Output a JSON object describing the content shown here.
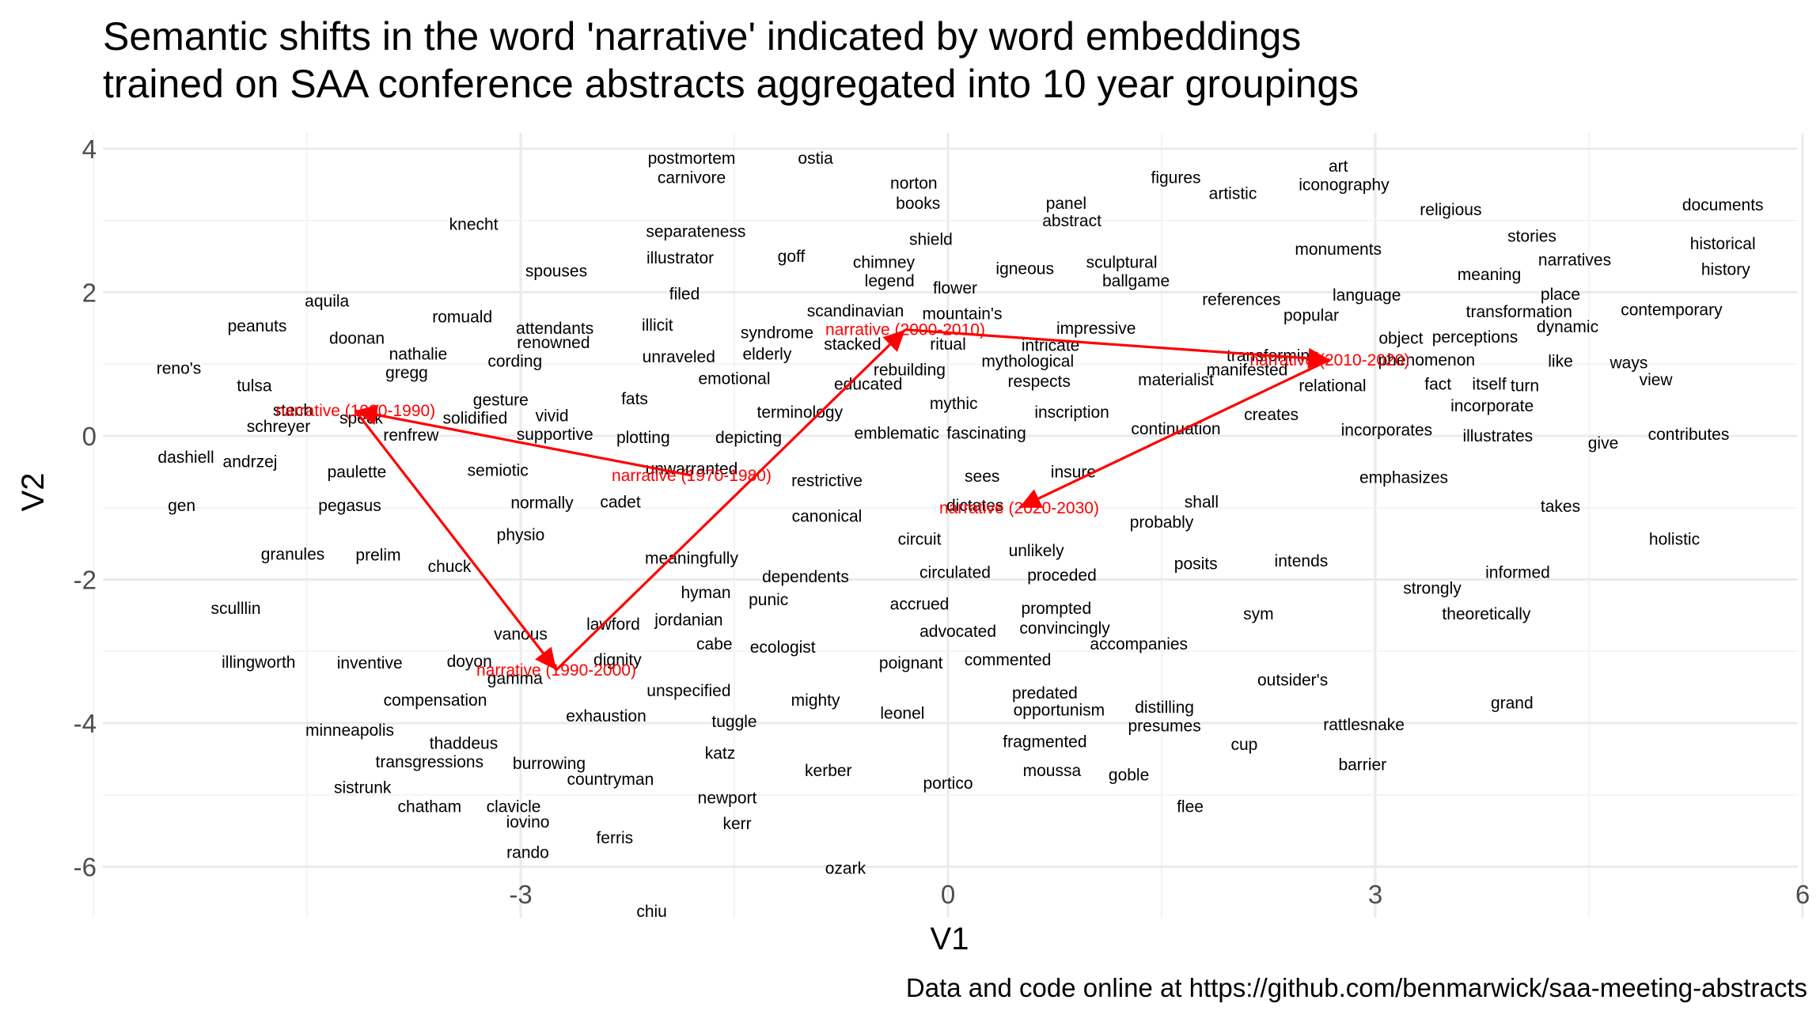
{
  "chart_data": {
    "type": "scatter",
    "title": "Semantic shifts in the word 'narrative' indicated by word embeddings\ntrained on SAA conference abstracts aggregated into 10 year groupings",
    "xlabel": "V1",
    "ylabel": "V2",
    "caption": "Data and code online at https://github.com/benmarwick/saa-meeting-abstracts",
    "xlim": [
      -6,
      6
    ],
    "ylim": [
      -6.2,
      4.4
    ],
    "xticks": [
      -3,
      0,
      3,
      6
    ],
    "xtick_labels": [
      "-3",
      "0",
      "3",
      "6"
    ],
    "yticks": [
      -6,
      -4,
      -2,
      0,
      2,
      4
    ],
    "ytick_labels": [
      "-6",
      "-4",
      "-2",
      "0",
      "2",
      "4"
    ],
    "grid": true,
    "label_color": "#000000",
    "highlight_color": "#ff0000",
    "words": [
      {
        "label": "postmortem",
        "x": -1.8,
        "y": 3.87
      },
      {
        "label": "ostia",
        "x": -0.93,
        "y": 3.87
      },
      {
        "label": "carnivore",
        "x": -1.8,
        "y": 3.6
      },
      {
        "label": "art",
        "x": 2.74,
        "y": 3.76
      },
      {
        "label": "figures",
        "x": 1.6,
        "y": 3.6
      },
      {
        "label": "iconography",
        "x": 2.78,
        "y": 3.5
      },
      {
        "label": "norton",
        "x": -0.24,
        "y": 3.52
      },
      {
        "label": "artistic",
        "x": 2.0,
        "y": 3.38
      },
      {
        "label": "panel",
        "x": 0.83,
        "y": 3.24
      },
      {
        "label": "books",
        "x": -0.21,
        "y": 3.24
      },
      {
        "label": "religious",
        "x": 3.53,
        "y": 3.15
      },
      {
        "label": "documents",
        "x": 5.44,
        "y": 3.22
      },
      {
        "label": "abstract",
        "x": 0.87,
        "y": 3.0
      },
      {
        "label": "knecht",
        "x": -3.33,
        "y": 2.95
      },
      {
        "label": "separateness",
        "x": -1.77,
        "y": 2.85
      },
      {
        "label": "shield",
        "x": -0.12,
        "y": 2.74
      },
      {
        "label": "stories",
        "x": 4.1,
        "y": 2.78
      },
      {
        "label": "historical",
        "x": 5.44,
        "y": 2.68
      },
      {
        "label": "monuments",
        "x": 2.74,
        "y": 2.6
      },
      {
        "label": "illustrator",
        "x": -1.88,
        "y": 2.48
      },
      {
        "label": "goff",
        "x": -1.1,
        "y": 2.5
      },
      {
        "label": "chimney",
        "x": -0.45,
        "y": 2.42
      },
      {
        "label": "sculptural",
        "x": 1.22,
        "y": 2.42
      },
      {
        "label": "narratives",
        "x": 4.4,
        "y": 2.45
      },
      {
        "label": "igneous",
        "x": 0.54,
        "y": 2.33
      },
      {
        "label": "spouses",
        "x": -2.75,
        "y": 2.3
      },
      {
        "label": "meaning",
        "x": 3.8,
        "y": 2.25
      },
      {
        "label": "history",
        "x": 5.46,
        "y": 2.32
      },
      {
        "label": "legend",
        "x": -0.41,
        "y": 2.16
      },
      {
        "label": "ballgame",
        "x": 1.32,
        "y": 2.16
      },
      {
        "label": "flower",
        "x": 0.05,
        "y": 2.06
      },
      {
        "label": "filed",
        "x": -1.85,
        "y": 1.98
      },
      {
        "label": "references",
        "x": 2.06,
        "y": 1.9
      },
      {
        "label": "language",
        "x": 2.94,
        "y": 1.96
      },
      {
        "label": "place",
        "x": 4.3,
        "y": 1.97
      },
      {
        "label": "aquila",
        "x": -4.36,
        "y": 1.88
      },
      {
        "label": "scandinavian",
        "x": -0.65,
        "y": 1.74
      },
      {
        "label": "transformation",
        "x": 4.01,
        "y": 1.73
      },
      {
        "label": "contemporary",
        "x": 5.08,
        "y": 1.76
      },
      {
        "label": "romuald",
        "x": -3.41,
        "y": 1.66
      },
      {
        "label": "popular",
        "x": 2.55,
        "y": 1.68
      },
      {
        "label": "mountain's",
        "x": 0.1,
        "y": 1.7
      },
      {
        "label": "attendants",
        "x": -2.76,
        "y": 1.5
      },
      {
        "label": "illicit",
        "x": -2.04,
        "y": 1.54
      },
      {
        "label": "syndrome",
        "x": -1.2,
        "y": 1.44
      },
      {
        "label": "impressive",
        "x": 1.04,
        "y": 1.5
      },
      {
        "label": "peanuts",
        "x": -4.85,
        "y": 1.53
      },
      {
        "label": "dynamic",
        "x": 4.35,
        "y": 1.52
      },
      {
        "label": "doonan",
        "x": -4.15,
        "y": 1.36
      },
      {
        "label": "perceptions",
        "x": 3.7,
        "y": 1.38
      },
      {
        "label": "object",
        "x": 3.18,
        "y": 1.36
      },
      {
        "label": "renowned",
        "x": -2.77,
        "y": 1.3
      },
      {
        "label": "stacked",
        "x": -0.67,
        "y": 1.28
      },
      {
        "label": "ritual",
        "x": 0.0,
        "y": 1.28
      },
      {
        "label": "intricate",
        "x": 0.72,
        "y": 1.26
      },
      {
        "label": "nathalie",
        "x": -3.72,
        "y": 1.14
      },
      {
        "label": "cording",
        "x": -3.04,
        "y": 1.04
      },
      {
        "label": "unraveled",
        "x": -1.89,
        "y": 1.1
      },
      {
        "label": "elderly",
        "x": -1.27,
        "y": 1.14
      },
      {
        "label": "mythological",
        "x": 0.56,
        "y": 1.04
      },
      {
        "label": "transforming",
        "x": 2.28,
        "y": 1.12
      },
      {
        "label": "phenomenon",
        "x": 3.36,
        "y": 1.06
      },
      {
        "label": "like",
        "x": 4.3,
        "y": 1.04
      },
      {
        "label": "ways",
        "x": 4.78,
        "y": 1.02
      },
      {
        "label": "manifested",
        "x": 2.1,
        "y": 0.92
      },
      {
        "label": "reno's",
        "x": -5.4,
        "y": 0.94
      },
      {
        "label": "gregg",
        "x": -3.8,
        "y": 0.88
      },
      {
        "label": "rebuilding",
        "x": -0.27,
        "y": 0.92
      },
      {
        "label": "tulsa",
        "x": -4.87,
        "y": 0.7
      },
      {
        "label": "emotional",
        "x": -1.5,
        "y": 0.8
      },
      {
        "label": "educated",
        "x": -0.56,
        "y": 0.72
      },
      {
        "label": "respects",
        "x": 0.64,
        "y": 0.76
      },
      {
        "label": "materialist",
        "x": 1.6,
        "y": 0.78
      },
      {
        "label": "relational",
        "x": 2.7,
        "y": 0.7
      },
      {
        "label": "fact",
        "x": 3.44,
        "y": 0.72
      },
      {
        "label": "itself",
        "x": 3.8,
        "y": 0.72
      },
      {
        "label": "turn",
        "x": 4.05,
        "y": 0.7
      },
      {
        "label": "view",
        "x": 4.97,
        "y": 0.78
      },
      {
        "label": "gesture",
        "x": -3.14,
        "y": 0.5
      },
      {
        "label": "fats",
        "x": -2.2,
        "y": 0.52
      },
      {
        "label": "mythic",
        "x": 0.04,
        "y": 0.45
      },
      {
        "label": "incorporate",
        "x": 3.82,
        "y": 0.42
      },
      {
        "label": "stech",
        "x": -4.6,
        "y": 0.36
      },
      {
        "label": "terminology",
        "x": -1.04,
        "y": 0.33
      },
      {
        "label": "inscription",
        "x": 0.87,
        "y": 0.33
      },
      {
        "label": "creates",
        "x": 2.27,
        "y": 0.3
      },
      {
        "label": "vivid",
        "x": -2.78,
        "y": 0.28
      },
      {
        "label": "solidified",
        "x": -3.32,
        "y": 0.25
      },
      {
        "label": "speck",
        "x": -4.12,
        "y": 0.25
      },
      {
        "label": "schreyer",
        "x": -4.7,
        "y": 0.13
      },
      {
        "label": "continuation",
        "x": 1.6,
        "y": 0.1
      },
      {
        "label": "supportive",
        "x": -2.76,
        "y": 0.02
      },
      {
        "label": "plotting",
        "x": -2.14,
        "y": -0.02
      },
      {
        "label": "depicting",
        "x": -1.4,
        "y": -0.02
      },
      {
        "label": "emblematic",
        "x": -0.36,
        "y": 0.04
      },
      {
        "label": "fascinating",
        "x": 0.27,
        "y": 0.04
      },
      {
        "label": "renfrew",
        "x": -3.77,
        "y": 0.01
      },
      {
        "label": "incorporates",
        "x": 3.08,
        "y": 0.08
      },
      {
        "label": "illustrates",
        "x": 3.86,
        "y": 0.0
      },
      {
        "label": "give",
        "x": 4.6,
        "y": -0.1
      },
      {
        "label": "contributes",
        "x": 5.2,
        "y": 0.02
      },
      {
        "label": "dashiell",
        "x": -5.35,
        "y": -0.3
      },
      {
        "label": "andrzej",
        "x": -4.9,
        "y": -0.36
      },
      {
        "label": "unwarranted",
        "x": -1.8,
        "y": -0.46
      },
      {
        "label": "paulette",
        "x": -4.15,
        "y": -0.5
      },
      {
        "label": "semiotic",
        "x": -3.16,
        "y": -0.48
      },
      {
        "label": "sees",
        "x": 0.24,
        "y": -0.56
      },
      {
        "label": "insure",
        "x": 0.88,
        "y": -0.5
      },
      {
        "label": "restrictive",
        "x": -0.85,
        "y": -0.62
      },
      {
        "label": "emphasizes",
        "x": 3.2,
        "y": -0.58
      },
      {
        "label": "gen",
        "x": -5.38,
        "y": -0.97
      },
      {
        "label": "pegasus",
        "x": -4.2,
        "y": -0.97
      },
      {
        "label": "normally",
        "x": -2.85,
        "y": -0.93
      },
      {
        "label": "cadet",
        "x": -2.3,
        "y": -0.92
      },
      {
        "label": "canonical",
        "x": -0.85,
        "y": -1.12
      },
      {
        "label": "dictates",
        "x": 0.19,
        "y": -0.97
      },
      {
        "label": "shall",
        "x": 1.78,
        "y": -0.92
      },
      {
        "label": "takes",
        "x": 4.3,
        "y": -0.98
      },
      {
        "label": "physio",
        "x": -3.0,
        "y": -1.38
      },
      {
        "label": "circuit",
        "x": -0.2,
        "y": -1.44
      },
      {
        "label": "probably",
        "x": 1.5,
        "y": -1.2
      },
      {
        "label": "granules",
        "x": -4.6,
        "y": -1.65
      },
      {
        "label": "prelim",
        "x": -4.0,
        "y": -1.66
      },
      {
        "label": "meaningfully",
        "x": -1.8,
        "y": -1.7
      },
      {
        "label": "chuck",
        "x": -3.5,
        "y": -1.82
      },
      {
        "label": "unlikely",
        "x": 0.62,
        "y": -1.6
      },
      {
        "label": "posits",
        "x": 1.74,
        "y": -1.78
      },
      {
        "label": "intends",
        "x": 2.48,
        "y": -1.74
      },
      {
        "label": "holistic",
        "x": 5.1,
        "y": -1.44
      },
      {
        "label": "circulated",
        "x": 0.05,
        "y": -1.9
      },
      {
        "label": "dependents",
        "x": -1.0,
        "y": -1.96
      },
      {
        "label": "informed",
        "x": 4.0,
        "y": -1.9
      },
      {
        "label": "proceded",
        "x": 0.8,
        "y": -1.94
      },
      {
        "label": "hyman",
        "x": -1.7,
        "y": -2.18
      },
      {
        "label": "strongly",
        "x": 3.4,
        "y": -2.12
      },
      {
        "label": "punic",
        "x": -1.26,
        "y": -2.28
      },
      {
        "label": "accrued",
        "x": -0.2,
        "y": -2.34
      },
      {
        "label": "prompted",
        "x": 0.76,
        "y": -2.4
      },
      {
        "label": "sculllin",
        "x": -5.0,
        "y": -2.4
      },
      {
        "label": "sym",
        "x": 2.18,
        "y": -2.48
      },
      {
        "label": "theoretically",
        "x": 3.78,
        "y": -2.48
      },
      {
        "label": "lawford",
        "x": -2.35,
        "y": -2.62
      },
      {
        "label": "jordanian",
        "x": -1.82,
        "y": -2.56
      },
      {
        "label": "convincingly",
        "x": 0.82,
        "y": -2.68
      },
      {
        "label": "advocated",
        "x": 0.07,
        "y": -2.72
      },
      {
        "label": "vanous",
        "x": -3.0,
        "y": -2.76
      },
      {
        "label": "cabe",
        "x": -1.64,
        "y": -2.9
      },
      {
        "label": "ecologist",
        "x": -1.16,
        "y": -2.94
      },
      {
        "label": "accompanies",
        "x": 1.34,
        "y": -2.9
      },
      {
        "label": "illingworth",
        "x": -4.84,
        "y": -3.15
      },
      {
        "label": "inventive",
        "x": -4.06,
        "y": -3.16
      },
      {
        "label": "doyon",
        "x": -3.36,
        "y": -3.14
      },
      {
        "label": "dignity",
        "x": -2.32,
        "y": -3.12
      },
      {
        "label": "poignant",
        "x": -0.26,
        "y": -3.16
      },
      {
        "label": "commented",
        "x": 0.42,
        "y": -3.12
      },
      {
        "label": "gamma",
        "x": -3.04,
        "y": -3.38
      },
      {
        "label": "outsider's",
        "x": 2.42,
        "y": -3.4
      },
      {
        "label": "unspecified",
        "x": -1.82,
        "y": -3.55
      },
      {
        "label": "predated",
        "x": 0.68,
        "y": -3.58
      },
      {
        "label": "mighty",
        "x": -0.93,
        "y": -3.68
      },
      {
        "label": "compensation",
        "x": -3.6,
        "y": -3.68
      },
      {
        "label": "grand",
        "x": 3.96,
        "y": -3.72
      },
      {
        "label": "exhaustion",
        "x": -2.4,
        "y": -3.9
      },
      {
        "label": "leonel",
        "x": -0.32,
        "y": -3.86
      },
      {
        "label": "opportunism",
        "x": 0.78,
        "y": -3.82
      },
      {
        "label": "distilling",
        "x": 1.52,
        "y": -3.78
      },
      {
        "label": "tuggle",
        "x": -1.5,
        "y": -3.98
      },
      {
        "label": "presumes",
        "x": 1.52,
        "y": -4.04
      },
      {
        "label": "rattlesnake",
        "x": 2.92,
        "y": -4.02
      },
      {
        "label": "minneapolis",
        "x": -4.2,
        "y": -4.1
      },
      {
        "label": "fragmented",
        "x": 0.68,
        "y": -4.26
      },
      {
        "label": "thaddeus",
        "x": -3.4,
        "y": -4.28
      },
      {
        "label": "cup",
        "x": 2.08,
        "y": -4.3
      },
      {
        "label": "transgressions",
        "x": -3.64,
        "y": -4.54
      },
      {
        "label": "burrowing",
        "x": -2.8,
        "y": -4.56
      },
      {
        "label": "katz",
        "x": -1.6,
        "y": -4.42
      },
      {
        "label": "barrier",
        "x": 2.91,
        "y": -4.58
      },
      {
        "label": "countryman",
        "x": -2.37,
        "y": -4.78
      },
      {
        "label": "kerber",
        "x": -0.84,
        "y": -4.66
      },
      {
        "label": "moussa",
        "x": 0.73,
        "y": -4.66
      },
      {
        "label": "goble",
        "x": 1.27,
        "y": -4.72
      },
      {
        "label": "sistrunk",
        "x": -4.11,
        "y": -4.9
      },
      {
        "label": "portico",
        "x": 0.0,
        "y": -4.84
      },
      {
        "label": "newport",
        "x": -1.55,
        "y": -5.04
      },
      {
        "label": "chatham",
        "x": -3.64,
        "y": -5.16
      },
      {
        "label": "clavicle",
        "x": -3.05,
        "y": -5.16
      },
      {
        "label": "flee",
        "x": 1.7,
        "y": -5.16
      },
      {
        "label": "kerr",
        "x": -1.48,
        "y": -5.4
      },
      {
        "label": "iovino",
        "x": -2.95,
        "y": -5.38
      },
      {
        "label": "ferris",
        "x": -2.34,
        "y": -5.6
      },
      {
        "label": "rando",
        "x": -2.95,
        "y": -5.8
      },
      {
        "label": "ozark",
        "x": -0.72,
        "y": -6.02
      },
      {
        "label": "chiu",
        "x": -2.08,
        "y": -6.62
      }
    ],
    "narrative_points": [
      {
        "label": "narrative (1970-1980)",
        "x": -1.8,
        "y": -0.55
      },
      {
        "label": "narrative (1980-1990)",
        "x": -4.16,
        "y": 0.35
      },
      {
        "label": "narrative (1990-2000)",
        "x": -2.75,
        "y": -3.26
      },
      {
        "label": "narrative (2000-2010)",
        "x": -0.3,
        "y": 1.48
      },
      {
        "label": "narrative (2010-2020)",
        "x": 2.68,
        "y": 1.06
      },
      {
        "label": "narrative (2020-2030)",
        "x": 0.5,
        "y": -1.0
      }
    ]
  }
}
